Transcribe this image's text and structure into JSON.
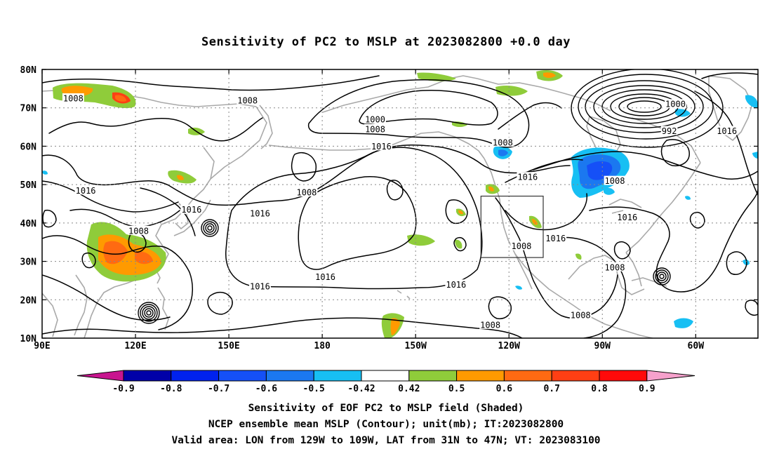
{
  "title": "Sensitivity of PC2 to MSLP at 2023082800 +0.0 day",
  "axes": {
    "lon_labels": [
      "90E",
      "120E",
      "150E",
      "180",
      "150W",
      "120W",
      "90W",
      "60W"
    ],
    "lat_labels": [
      "80N",
      "70N",
      "60N",
      "50N",
      "40N",
      "30N",
      "20N",
      "10N"
    ]
  },
  "contour_labels": [
    {
      "text": "1008",
      "lon": 100,
      "lat": 72.5
    },
    {
      "text": "1008",
      "lon": 156,
      "lat": 72
    },
    {
      "text": "1000",
      "lon": 197,
      "lat": 67
    },
    {
      "text": "1008",
      "lon": 197,
      "lat": 64.5
    },
    {
      "text": "1016",
      "lon": 199,
      "lat": 60
    },
    {
      "text": "1008",
      "lon": 238,
      "lat": 61
    },
    {
      "text": "1016",
      "lon": 246,
      "lat": 52
    },
    {
      "text": "1008",
      "lon": 175,
      "lat": 48
    },
    {
      "text": "1016",
      "lon": 104,
      "lat": 48.5
    },
    {
      "text": "1016",
      "lon": 138,
      "lat": 43.5
    },
    {
      "text": "1016",
      "lon": 160,
      "lat": 42.5
    },
    {
      "text": "1008",
      "lon": 121,
      "lat": 38
    },
    {
      "text": "1016",
      "lon": 181,
      "lat": 26
    },
    {
      "text": "1016",
      "lon": 160,
      "lat": 23.5
    },
    {
      "text": "1016",
      "lon": 223,
      "lat": 24
    },
    {
      "text": "1008",
      "lon": 244,
      "lat": 34
    },
    {
      "text": "1016",
      "lon": 255,
      "lat": 36
    },
    {
      "text": "1008",
      "lon": 274,
      "lat": 28.5
    },
    {
      "text": "1008",
      "lon": 263,
      "lat": 16
    },
    {
      "text": "1008",
      "lon": 234,
      "lat": 13.5
    },
    {
      "text": "1000",
      "lon": 293.5,
      "lat": 71
    },
    {
      "text": "992",
      "lon": 291.5,
      "lat": 64
    },
    {
      "text": "1008",
      "lon": 274,
      "lat": 51
    },
    {
      "text": "1016",
      "lon": 278,
      "lat": 41.5
    },
    {
      "text": "1016",
      "lon": 310,
      "lat": 64
    }
  ],
  "valid_area": {
    "lon_min": 231,
    "lon_max": 251,
    "lat_min": 31,
    "lat_max": 47
  },
  "colorbar": {
    "labels": [
      "-0.9",
      "-0.8",
      "-0.7",
      "-0.6",
      "-0.5",
      "-0.42",
      "0.42",
      "0.5",
      "0.6",
      "0.7",
      "0.8",
      "0.9"
    ],
    "colors": [
      "#0000a8",
      "#0022ee",
      "#1550f7",
      "#1b78f0",
      "#17bff3",
      "#ffffff",
      "#8fcc3a",
      "#ff9a00",
      "#ff6a12",
      "#ff3f14",
      "#ff0a0a"
    ],
    "low_extend_color": "#c8158f",
    "high_extend_color": "#f6a1cc"
  },
  "footer": {
    "line1": "Sensitivity of EOF PC2 to MSLP field (Shaded)",
    "line2": "NCEP ensemble mean MSLP (Contour); unit(mb); IT:2023082800",
    "line3": "Valid area: LON from 129W to 109W, LAT from 31N to 47N; VT: 2023083100"
  }
}
